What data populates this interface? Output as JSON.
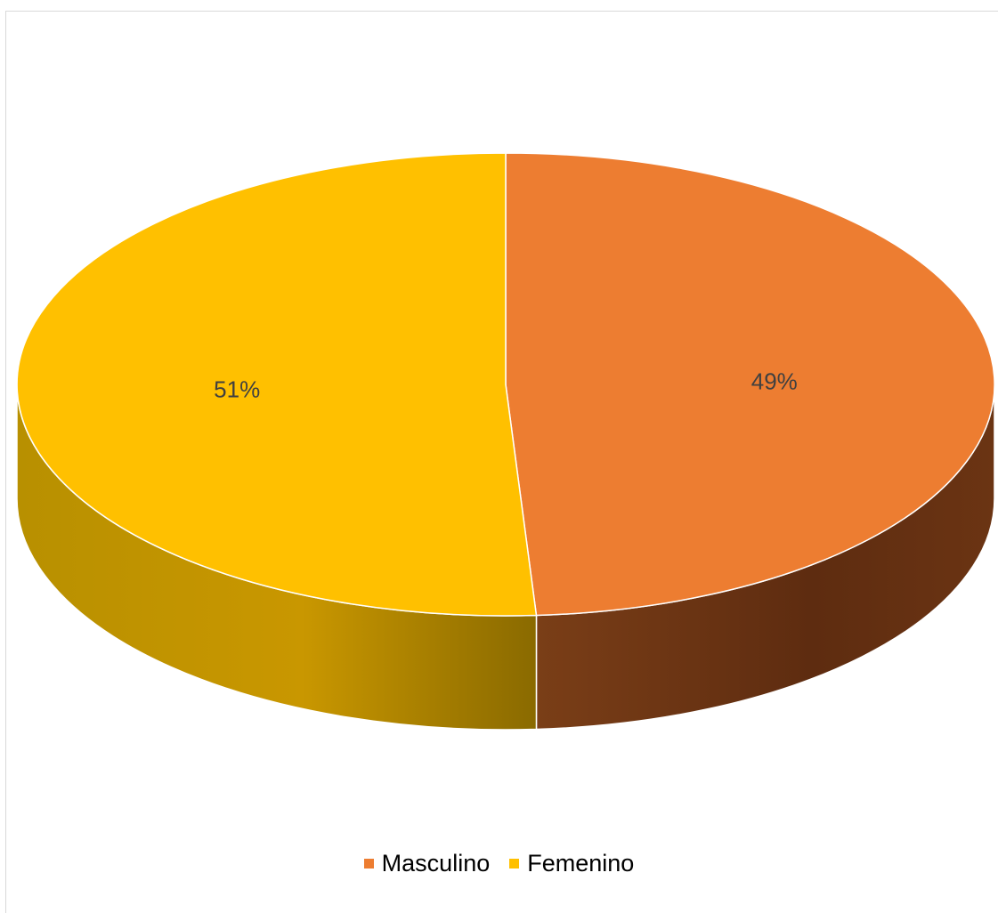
{
  "chart_data": {
    "type": "pie",
    "style": "3d",
    "title": "",
    "slices": [
      {
        "label": "Masculino",
        "value": 49,
        "display": "49%",
        "color": "#ED7D31",
        "side_color": "#6B3413"
      },
      {
        "label": "Femenino",
        "value": 51,
        "display": "51%",
        "color": "#FFC000",
        "side_color": "#A57D00"
      }
    ],
    "legend_position": "bottom",
    "data_labels": true
  }
}
